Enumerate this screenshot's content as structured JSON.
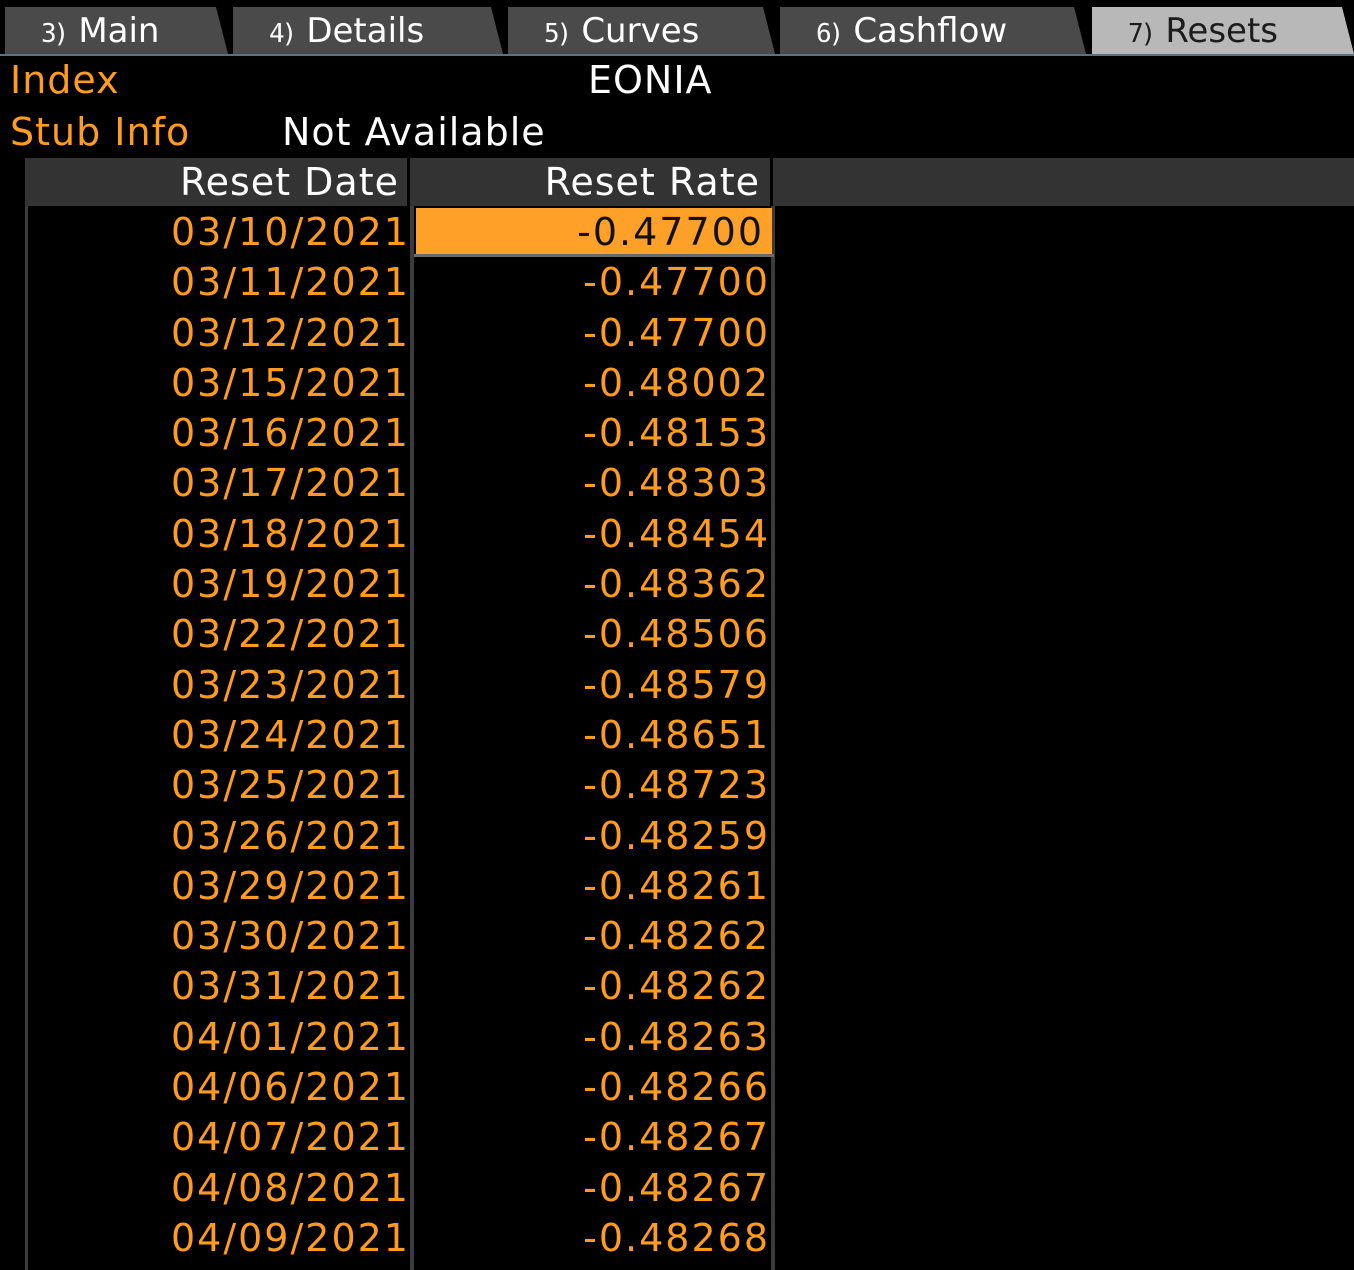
{
  "tabs": [
    {
      "num": "3)",
      "label": "Main",
      "active": false
    },
    {
      "num": "4)",
      "label": "Details",
      "active": false
    },
    {
      "num": "5)",
      "label": "Curves",
      "active": false
    },
    {
      "num": "6)",
      "label": "Cashflow",
      "active": false
    },
    {
      "num": "7)",
      "label": "Resets",
      "active": true
    }
  ],
  "info": {
    "index_label": "Index",
    "index_value": "EONIA",
    "stub_label": "Stub Info",
    "stub_value": "Not Available"
  },
  "table": {
    "headers": {
      "date": "Reset Date",
      "rate": "Reset Rate"
    },
    "rows": [
      {
        "date": "03/10/2021",
        "rate": "-0.47700"
      },
      {
        "date": "03/11/2021",
        "rate": "-0.47700"
      },
      {
        "date": "03/12/2021",
        "rate": "-0.47700"
      },
      {
        "date": "03/15/2021",
        "rate": "-0.48002"
      },
      {
        "date": "03/16/2021",
        "rate": "-0.48153"
      },
      {
        "date": "03/17/2021",
        "rate": "-0.48303"
      },
      {
        "date": "03/18/2021",
        "rate": "-0.48454"
      },
      {
        "date": "03/19/2021",
        "rate": "-0.48362"
      },
      {
        "date": "03/22/2021",
        "rate": "-0.48506"
      },
      {
        "date": "03/23/2021",
        "rate": "-0.48579"
      },
      {
        "date": "03/24/2021",
        "rate": "-0.48651"
      },
      {
        "date": "03/25/2021",
        "rate": "-0.48723"
      },
      {
        "date": "03/26/2021",
        "rate": "-0.48259"
      },
      {
        "date": "03/29/2021",
        "rate": "-0.48261"
      },
      {
        "date": "03/30/2021",
        "rate": "-0.48262"
      },
      {
        "date": "03/31/2021",
        "rate": "-0.48262"
      },
      {
        "date": "04/01/2021",
        "rate": "-0.48263"
      },
      {
        "date": "04/06/2021",
        "rate": "-0.48266"
      },
      {
        "date": "04/07/2021",
        "rate": "-0.48267"
      },
      {
        "date": "04/08/2021",
        "rate": "-0.48267"
      },
      {
        "date": "04/09/2021",
        "rate": "-0.48268"
      }
    ],
    "selected_row": 0
  },
  "colors": {
    "accent_orange": "#ff9b1d",
    "selection": "#ffa028",
    "tab_inactive": "#4a4a4a",
    "tab_active": "#b8b8b8",
    "header_bg": "#333333",
    "background": "#000000"
  }
}
